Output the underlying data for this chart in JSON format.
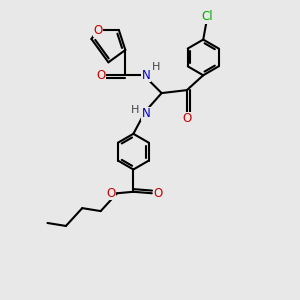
{
  "bg_color": "#e8e8e8",
  "bond_color": "#000000",
  "bond_width": 1.5,
  "atom_colors": {
    "O": "#cc0000",
    "N": "#0000cc",
    "Cl": "#00aa00",
    "C": "#000000",
    "H": "#444444"
  },
  "font_size": 8.5
}
